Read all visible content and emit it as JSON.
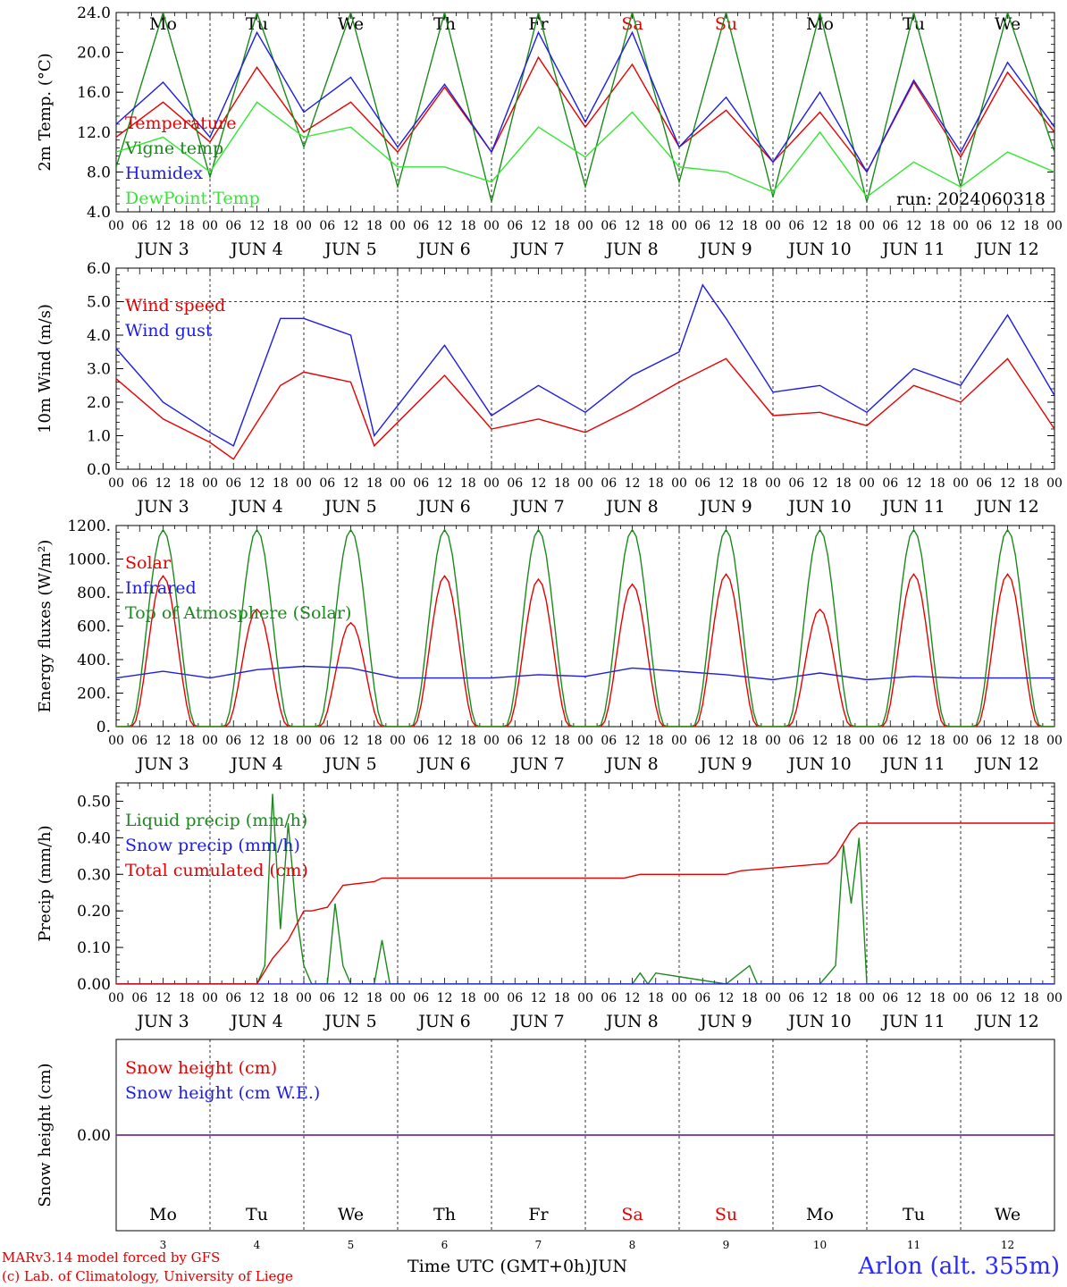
{
  "meta": {
    "run_label": "run: 2024060318",
    "station": "Arlon (alt. 355m)",
    "credit_model": "MARv3.14 model forced by GFS",
    "credit_lab": "(c) Lab. of Climatology, University of Liege",
    "x_label": "Time UTC (GMT+0h)",
    "month": "JUN"
  },
  "colors": {
    "red": "#e60000",
    "green": "#1a8a1a",
    "blue": "#1c1ce6",
    "light_green": "#33e633",
    "purple": "#7030a0",
    "weekend": "#e60000"
  },
  "chart_data": [
    {
      "id": "temperature",
      "type": "line",
      "ylabel": "2m Temp. (°C)",
      "ylim": [
        4,
        24
      ],
      "yticks": [
        "4.0",
        "8.0",
        "12.0",
        "16.0",
        "20.0",
        "24.0"
      ],
      "dashed_lines": [],
      "day_names": [
        "Mo",
        "Tu",
        "We",
        "Th",
        "Fr",
        "Sa",
        "Su",
        "Mo",
        "Tu",
        "We"
      ],
      "series": [
        {
          "name": "Temperature",
          "color": "red",
          "x": [
            0,
            12,
            24,
            36,
            48,
            60,
            72,
            84,
            96,
            108,
            120,
            132,
            144,
            156,
            168,
            180,
            192,
            204,
            216,
            228,
            240
          ],
          "values": [
            11.5,
            15.0,
            11.0,
            18.5,
            12.0,
            15.0,
            10.0,
            16.5,
            10.0,
            19.5,
            12.5,
            18.8,
            10.5,
            14.2,
            9.0,
            14.0,
            8.0,
            17.0,
            9.5,
            18.0,
            12.0
          ]
        },
        {
          "name": "Vigne temp",
          "color": "green",
          "x": [
            0,
            12,
            24,
            36,
            48,
            60,
            72,
            84,
            96,
            108,
            120,
            132,
            144,
            156,
            168,
            180,
            192,
            204,
            216,
            228,
            240
          ],
          "values": [
            8.5,
            24.0,
            7.5,
            24.0,
            10.5,
            24.0,
            6.5,
            24.0,
            5.0,
            24.0,
            6.5,
            24.0,
            7.0,
            24.0,
            5.5,
            24.0,
            5.0,
            24.0,
            6.5,
            24.0,
            10.0
          ]
        },
        {
          "name": "Humidex",
          "color": "blue",
          "x": [
            0,
            12,
            24,
            36,
            48,
            60,
            72,
            84,
            96,
            108,
            120,
            132,
            144,
            156,
            168,
            180,
            192,
            204,
            216,
            228,
            240
          ],
          "values": [
            12.8,
            17.0,
            11.5,
            22.0,
            14.0,
            17.5,
            10.5,
            16.8,
            10.0,
            22.0,
            13.0,
            22.0,
            10.5,
            15.5,
            9.0,
            16.0,
            8.0,
            17.2,
            10.0,
            19.0,
            12.5
          ]
        },
        {
          "name": "DewPoint Temp",
          "color": "light_green",
          "x": [
            0,
            12,
            24,
            36,
            48,
            60,
            72,
            84,
            96,
            108,
            120,
            132,
            144,
            156,
            168,
            180,
            192,
            204,
            216,
            228,
            240
          ],
          "values": [
            10.0,
            11.5,
            8.0,
            15.0,
            11.5,
            12.5,
            8.5,
            8.5,
            7.0,
            12.5,
            9.5,
            14.0,
            8.5,
            8.0,
            6.0,
            12.0,
            5.5,
            9.0,
            6.5,
            10.0,
            8.0
          ]
        }
      ]
    },
    {
      "id": "wind",
      "type": "line",
      "ylabel": "10m Wind (m/s)",
      "ylim": [
        0,
        6
      ],
      "yticks": [
        "0.0",
        "1.0",
        "2.0",
        "3.0",
        "4.0",
        "5.0",
        "6.0"
      ],
      "dashed_lines": [
        5.0
      ],
      "series": [
        {
          "name": "Wind speed",
          "color": "red",
          "x": [
            0,
            12,
            24,
            30,
            42,
            48,
            60,
            66,
            84,
            96,
            108,
            120,
            132,
            144,
            156,
            168,
            180,
            192,
            204,
            216,
            228,
            240
          ],
          "values": [
            2.7,
            1.5,
            0.8,
            0.3,
            2.5,
            2.9,
            2.6,
            0.7,
            2.8,
            1.2,
            1.5,
            1.1,
            1.8,
            2.6,
            3.3,
            1.6,
            1.7,
            1.3,
            2.5,
            2.0,
            3.3,
            1.2
          ]
        },
        {
          "name": "Wind gust",
          "color": "blue",
          "x": [
            0,
            12,
            24,
            30,
            42,
            48,
            60,
            66,
            84,
            96,
            108,
            120,
            132,
            144,
            150,
            156,
            168,
            180,
            192,
            204,
            216,
            228,
            240
          ],
          "values": [
            3.6,
            2.0,
            1.1,
            0.7,
            4.5,
            4.5,
            4.0,
            1.0,
            3.7,
            1.6,
            2.5,
            1.7,
            2.8,
            3.5,
            5.5,
            4.5,
            2.3,
            2.5,
            1.7,
            3.0,
            2.5,
            4.6,
            2.2
          ]
        }
      ]
    },
    {
      "id": "energy",
      "type": "line",
      "ylabel": "Energy fluxes (W/m²)",
      "ylim": [
        0,
        1200
      ],
      "yticks": [
        "0.",
        "200.",
        "400.",
        "600.",
        "800.",
        "1000.",
        "1200."
      ],
      "dashed_lines": [],
      "solar_peaks": [
        900,
        700,
        620,
        900,
        880,
        850,
        910,
        700,
        910,
        910
      ],
      "toa_peak": 1175,
      "series": [
        {
          "name": "Solar",
          "color": "red"
        },
        {
          "name": "Infrared",
          "color": "blue",
          "x": [
            0,
            12,
            24,
            36,
            48,
            60,
            72,
            84,
            96,
            108,
            120,
            132,
            144,
            156,
            168,
            180,
            192,
            204,
            216,
            228,
            240
          ],
          "values": [
            290,
            330,
            290,
            340,
            360,
            350,
            290,
            290,
            290,
            310,
            300,
            350,
            330,
            310,
            280,
            320,
            280,
            300,
            290,
            290,
            290
          ]
        },
        {
          "name": "Top of Atmosphere (Solar)",
          "color": "green"
        }
      ]
    },
    {
      "id": "precip",
      "type": "line",
      "ylabel": "Precip (mm/h)",
      "ylim": [
        0,
        0.55
      ],
      "yticks": [
        "0.00",
        "0.10",
        "0.20",
        "0.30",
        "0.40",
        "0.50"
      ],
      "dashed_lines": [],
      "series": [
        {
          "name": "Liquid precip (mm/h)",
          "color": "green",
          "x": [
            0,
            36,
            38,
            40,
            42,
            44,
            46,
            48,
            50,
            54,
            56,
            58,
            60,
            66,
            68,
            70,
            72,
            132,
            134,
            136,
            138,
            156,
            162,
            164,
            168,
            180,
            184,
            186,
            188,
            190,
            192,
            240
          ],
          "values": [
            0,
            0,
            0.05,
            0.52,
            0.15,
            0.44,
            0.2,
            0.05,
            0,
            0,
            0.22,
            0.05,
            0,
            0,
            0.12,
            0,
            0,
            0,
            0.03,
            0,
            0.03,
            0,
            0.05,
            0,
            0,
            0,
            0.05,
            0.38,
            0.22,
            0.4,
            0,
            0
          ]
        },
        {
          "name": "Snow precip (mm/h)",
          "color": "blue",
          "x": [
            0,
            240
          ],
          "values": [
            0,
            0
          ]
        },
        {
          "name": "Total cumulated (cm)",
          "color": "red",
          "x": [
            0,
            36,
            40,
            44,
            48,
            50,
            54,
            58,
            66,
            68,
            72,
            130,
            134,
            156,
            160,
            182,
            184,
            188,
            190,
            192,
            240
          ],
          "values": [
            0,
            0,
            0.07,
            0.12,
            0.2,
            0.2,
            0.21,
            0.27,
            0.28,
            0.29,
            0.29,
            0.29,
            0.3,
            0.3,
            0.31,
            0.33,
            0.35,
            0.42,
            0.44,
            0.44,
            0.44
          ]
        }
      ]
    },
    {
      "id": "snow",
      "type": "line",
      "ylabel": "Snow height (cm)",
      "ylim": [
        -1,
        1
      ],
      "yticks": [
        "0.00"
      ],
      "dashed_lines": [],
      "series": [
        {
          "name": "Snow height (cm)",
          "color": "red",
          "x": [
            0,
            240
          ],
          "values": [
            0,
            0
          ]
        },
        {
          "name": "Snow height (cm W.E.)",
          "color": "blue",
          "x": [
            0,
            240
          ],
          "values": [
            0,
            0
          ]
        }
      ]
    }
  ],
  "axis": {
    "hour_labels": [
      "00",
      "06",
      "12",
      "18"
    ],
    "date_labels": [
      "JUN  3",
      "JUN  4",
      "JUN  5",
      "JUN  6",
      "JUN  7",
      "JUN  8",
      "JUN  9",
      "JUN 10",
      "JUN 11",
      "JUN 12"
    ],
    "bottom_day_names": [
      "Mo",
      "Tu",
      "We",
      "Th",
      "Fr",
      "Sa",
      "Su",
      "Mo",
      "Tu",
      "We"
    ],
    "bottom_day_numbers": [
      "3",
      "4",
      "5",
      "6",
      "7",
      "8",
      "9",
      "10",
      "11",
      "12"
    ],
    "weekend_index": [
      5,
      6
    ]
  }
}
